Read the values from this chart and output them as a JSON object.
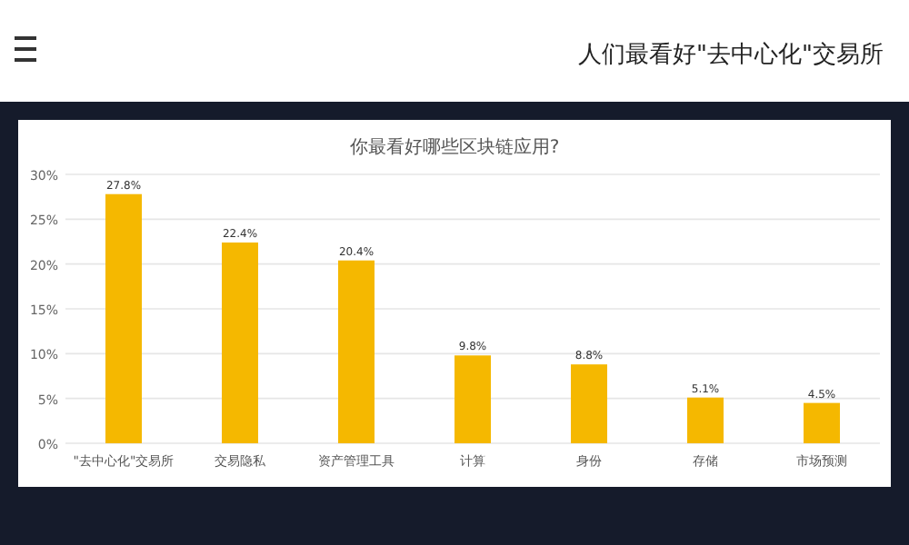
{
  "chart_data": {
    "type": "bar",
    "title": "你最看好哪些区块链应用?",
    "annotations": [
      "人们最看好\"去中心化\"交易所"
    ],
    "categories": [
      "\"去中心化\"交易所",
      "交易隐私",
      "资产管理工具",
      "计算",
      "身份",
      "存储",
      "市场预测"
    ],
    "values": [
      27.8,
      22.4,
      20.4,
      9.8,
      8.8,
      5.1,
      4.5
    ],
    "color": "#f5b800",
    "ylim": [
      0,
      30
    ],
    "yticks": [
      {
        "value": 0,
        "label": "0%"
      },
      {
        "value": 5,
        "label": "5%"
      },
      {
        "value": 10,
        "label": "10%"
      },
      {
        "value": 15,
        "label": "15%"
      },
      {
        "value": 20,
        "label": "20%"
      },
      {
        "value": 25,
        "label": "25%"
      },
      {
        "value": 30,
        "label": "30%"
      }
    ],
    "value_labels": [
      "27.8%",
      "22.4%",
      "20.4%",
      "9.8%",
      "8.8%",
      "5.1%",
      "4.5%"
    ],
    "grid": "y"
  }
}
